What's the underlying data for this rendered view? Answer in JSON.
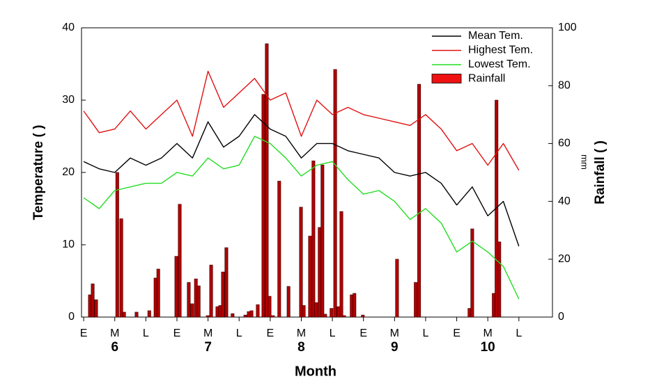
{
  "chart_data": {
    "type": "line",
    "x_label": "Month",
    "y_label": "Temperature (   )",
    "y2_label": "Rainfall (   )",
    "y2_unit": "mm",
    "xlim": [
      -0.07,
      15.08
    ],
    "xticks": [
      {
        "value": 0,
        "label": "E"
      },
      {
        "value": 1,
        "label": "M"
      },
      {
        "value": 2,
        "label": "L"
      },
      {
        "value": 3,
        "label": "E"
      },
      {
        "value": 4,
        "label": "M"
      },
      {
        "value": 5,
        "label": "L"
      },
      {
        "value": 6,
        "label": "E"
      },
      {
        "value": 7,
        "label": "M"
      },
      {
        "value": 8,
        "label": "L"
      },
      {
        "value": 9,
        "label": "E"
      },
      {
        "value": 10,
        "label": "M"
      },
      {
        "value": 11,
        "label": "L"
      },
      {
        "value": 12,
        "label": "E"
      },
      {
        "value": 13,
        "label": "M"
      },
      {
        "value": 14,
        "label": "L"
      }
    ],
    "month_labels": [
      {
        "value": 1,
        "label": "6"
      },
      {
        "value": 4,
        "label": "7"
      },
      {
        "value": 7,
        "label": "8"
      },
      {
        "value": 10,
        "label": "9"
      },
      {
        "value": 13,
        "label": "10"
      }
    ],
    "ylim": [
      0,
      40
    ],
    "yticks": [
      0,
      10,
      20,
      30,
      40
    ],
    "y2lim": [
      0,
      100
    ],
    "y2ticks": [
      0,
      20,
      40,
      60,
      80,
      100
    ],
    "legend": "upper right",
    "x": [
      0,
      0.5,
      1,
      1.5,
      2,
      2.5,
      3,
      3.5,
      4,
      4.5,
      5,
      5.5,
      6,
      6.5,
      7,
      7.5,
      8,
      8.5,
      9,
      9.5,
      10,
      10.5,
      11,
      11.5,
      12,
      12.5,
      13,
      13.5,
      14
    ],
    "series": [
      {
        "name": "Mean Tem.",
        "color": "#000000",
        "values": [
          21.5,
          20.5,
          20,
          22,
          21,
          22,
          24,
          22,
          27,
          23.5,
          25,
          28,
          26,
          25,
          22,
          24,
          24,
          23,
          22.5,
          22,
          20,
          19.5,
          20,
          18.5,
          15.5,
          18,
          14,
          16,
          9.8
        ]
      },
      {
        "name": "Highest Tem.",
        "color": "#e01010",
        "values": [
          28.5,
          25.5,
          26,
          28.5,
          26,
          28,
          30,
          25,
          34,
          29,
          31,
          33,
          30,
          31,
          25,
          30,
          28,
          29,
          28,
          27.5,
          27,
          26.5,
          28,
          26,
          23,
          24,
          21,
          24,
          20.3
        ]
      },
      {
        "name": "Lowest Tem.",
        "color": "#22dd22",
        "values": [
          16.5,
          15,
          17.5,
          18,
          18.5,
          18.5,
          20,
          19.5,
          22,
          20.5,
          21,
          25,
          24,
          22,
          19.5,
          21,
          21.5,
          19,
          17,
          17.5,
          16,
          13.5,
          15,
          13,
          9,
          10.5,
          9,
          7,
          2.5
        ]
      },
      {
        "name": "Rainfall",
        "type": "bar",
        "axis": "y2",
        "color": "#b00000",
        "legend_color": "#ee1111",
        "x": [
          0.2,
          0.29,
          0.4,
          1.08,
          1.21,
          1.3,
          1.7,
          2.11,
          2.31,
          2.4,
          2.98,
          3.09,
          3.38,
          3.49,
          3.61,
          3.7,
          3.99,
          4.1,
          4.3,
          4.39,
          4.48,
          4.59,
          4.79,
          5.2,
          5.31,
          5.4,
          5.6,
          5.78,
          5.89,
          5.98,
          6.09,
          6.29,
          6.59,
          6.99,
          7.08,
          7.28,
          7.39,
          7.48,
          7.59,
          7.68,
          7.77,
          7.97,
          8.09,
          8.2,
          8.29,
          8.38,
          8.62,
          8.71,
          8.98,
          10.08,
          10.68,
          10.79,
          12.41,
          12.5,
          13.19,
          13.28,
          13.37
        ],
        "values": [
          7.7,
          11.5,
          6,
          50,
          34,
          1.7,
          1.7,
          2.2,
          13.5,
          16.6,
          21,
          39,
          12,
          4.6,
          13.2,
          10.8,
          0.5,
          18,
          3.6,
          4,
          15.6,
          24,
          1.2,
          0.7,
          1.9,
          2.2,
          4.3,
          77,
          94.5,
          7.2,
          0.5,
          47,
          10.6,
          38,
          4,
          28,
          54,
          5,
          31,
          52.6,
          1,
          3,
          85.6,
          3.6,
          36.5,
          0.5,
          7.7,
          8.2,
          0.7,
          20,
          12,
          80.5,
          3,
          30.5,
          8.2,
          75,
          26
        ]
      }
    ]
  }
}
